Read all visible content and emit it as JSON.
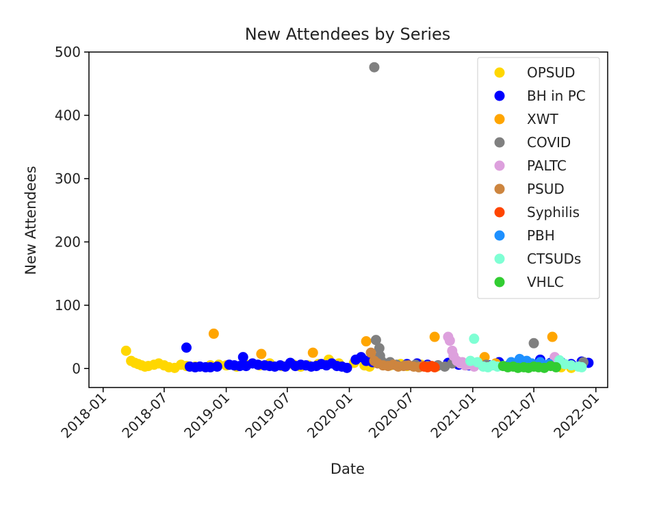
{
  "chart_data": {
    "type": "scatter",
    "title": "New Attendees by Series",
    "xlabel": "Date",
    "ylabel": "New Attendees",
    "x_type": "date",
    "xlim": [
      "2017-11-20",
      "2022-02-05"
    ],
    "ylim": [
      -30,
      500
    ],
    "x_ticks": [
      "2018-01",
      "2018-07",
      "2019-01",
      "2019-07",
      "2020-01",
      "2020-07",
      "2021-01",
      "2021-07",
      "2022-01"
    ],
    "y_ticks": [
      0,
      100,
      200,
      300,
      400,
      500
    ],
    "grid": false,
    "legend_position": "top-right",
    "series": [
      {
        "name": "OPSUD",
        "color": "#FFD700",
        "points": [
          [
            "2018-03-10",
            28
          ],
          [
            "2018-03-25",
            12
          ],
          [
            "2018-04-05",
            9
          ],
          [
            "2018-04-15",
            7
          ],
          [
            "2018-04-25",
            5
          ],
          [
            "2018-05-05",
            3
          ],
          [
            "2018-05-15",
            4
          ],
          [
            "2018-06-01",
            6
          ],
          [
            "2018-06-15",
            8
          ],
          [
            "2018-07-01",
            5
          ],
          [
            "2018-07-15",
            2
          ],
          [
            "2018-08-01",
            1
          ],
          [
            "2018-08-20",
            6
          ],
          [
            "2018-09-05",
            4
          ],
          [
            "2018-10-01",
            3
          ],
          [
            "2018-11-15",
            5
          ],
          [
            "2018-12-10",
            6
          ],
          [
            "2019-01-01",
            5
          ],
          [
            "2019-02-01",
            3
          ],
          [
            "2019-03-01",
            6
          ],
          [
            "2019-04-10",
            5
          ],
          [
            "2019-05-10",
            8
          ],
          [
            "2019-06-15",
            4
          ],
          [
            "2019-07-20",
            6
          ],
          [
            "2019-08-10",
            3
          ],
          [
            "2019-09-01",
            5
          ],
          [
            "2019-10-01",
            7
          ],
          [
            "2019-11-01",
            14
          ],
          [
            "2019-12-01",
            8
          ],
          [
            "2020-01-15",
            9
          ],
          [
            "2020-02-15",
            5
          ],
          [
            "2020-03-01",
            3
          ],
          [
            "2020-04-10",
            6
          ],
          [
            "2020-05-01",
            5
          ],
          [
            "2020-06-01",
            7
          ],
          [
            "2020-06-20",
            4
          ],
          [
            "2020-08-01",
            6
          ],
          [
            "2020-09-15",
            3
          ],
          [
            "2021-05-15",
            2
          ],
          [
            "2021-07-10",
            4
          ],
          [
            "2021-09-20",
            2
          ],
          [
            "2021-10-20",
            1
          ]
        ]
      },
      {
        "name": "BH in PC",
        "color": "#0000FF",
        "points": [
          [
            "2018-09-05",
            33
          ],
          [
            "2018-09-15",
            3
          ],
          [
            "2018-10-01",
            2
          ],
          [
            "2018-10-15",
            3
          ],
          [
            "2018-11-01",
            2
          ],
          [
            "2018-11-15",
            2
          ],
          [
            "2018-12-05",
            3
          ],
          [
            "2019-01-10",
            6
          ],
          [
            "2019-01-25",
            5
          ],
          [
            "2019-02-10",
            4
          ],
          [
            "2019-02-20",
            18
          ],
          [
            "2019-03-01",
            4
          ],
          [
            "2019-03-20",
            8
          ],
          [
            "2019-04-05",
            6
          ],
          [
            "2019-04-25",
            5
          ],
          [
            "2019-05-10",
            4
          ],
          [
            "2019-05-25",
            3
          ],
          [
            "2019-06-10",
            5
          ],
          [
            "2019-06-25",
            3
          ],
          [
            "2019-07-10",
            9
          ],
          [
            "2019-07-25",
            4
          ],
          [
            "2019-08-10",
            6
          ],
          [
            "2019-08-25",
            5
          ],
          [
            "2019-09-10",
            3
          ],
          [
            "2019-09-25",
            4
          ],
          [
            "2019-10-10",
            7
          ],
          [
            "2019-10-25",
            5
          ],
          [
            "2019-11-10",
            8
          ],
          [
            "2019-11-25",
            4
          ],
          [
            "2019-12-10",
            3
          ],
          [
            "2019-12-25",
            1
          ],
          [
            "2020-01-20",
            14
          ],
          [
            "2020-02-05",
            18
          ],
          [
            "2020-02-20",
            12
          ],
          [
            "2020-03-10",
            10
          ],
          [
            "2020-04-15",
            6
          ],
          [
            "2020-05-20",
            5
          ],
          [
            "2020-06-20",
            7
          ],
          [
            "2020-07-20",
            8
          ],
          [
            "2020-08-20",
            6
          ],
          [
            "2020-09-20",
            5
          ],
          [
            "2020-10-20",
            9
          ],
          [
            "2020-11-20",
            6
          ],
          [
            "2020-12-20",
            5
          ],
          [
            "2021-01-20",
            8
          ],
          [
            "2021-02-20",
            5
          ],
          [
            "2021-03-20",
            10
          ],
          [
            "2021-04-20",
            6
          ],
          [
            "2021-05-20",
            12
          ],
          [
            "2021-06-20",
            8
          ],
          [
            "2021-07-20",
            14
          ],
          [
            "2021-08-20",
            9
          ],
          [
            "2021-09-20",
            10
          ],
          [
            "2021-10-20",
            7
          ],
          [
            "2021-11-20",
            11
          ],
          [
            "2021-12-10",
            9
          ]
        ]
      },
      {
        "name": "XWT",
        "color": "#FFA500",
        "points": [
          [
            "2018-11-25",
            55
          ],
          [
            "2019-04-15",
            23
          ],
          [
            "2019-09-15",
            25
          ],
          [
            "2020-02-20",
            43
          ],
          [
            "2020-09-10",
            50
          ],
          [
            "2021-02-05",
            18
          ],
          [
            "2021-08-25",
            50
          ],
          [
            "2021-03-10",
            8
          ],
          [
            "2021-06-15",
            6
          ]
        ]
      },
      {
        "name": "COVID",
        "color": "#808080",
        "points": [
          [
            "2020-03-15",
            476
          ],
          [
            "2020-03-20",
            45
          ],
          [
            "2020-03-30",
            32
          ],
          [
            "2020-04-01",
            20
          ],
          [
            "2020-04-05",
            12
          ],
          [
            "2020-04-15",
            8
          ],
          [
            "2020-05-01",
            10
          ],
          [
            "2020-05-20",
            6
          ],
          [
            "2020-06-15",
            5
          ],
          [
            "2020-07-15",
            6
          ],
          [
            "2020-08-20",
            4
          ],
          [
            "2020-09-20",
            5
          ],
          [
            "2020-10-10",
            3
          ],
          [
            "2020-11-01",
            8
          ],
          [
            "2020-12-10",
            5
          ],
          [
            "2021-02-10",
            6
          ],
          [
            "2021-07-01",
            40
          ],
          [
            "2021-11-25",
            10
          ]
        ]
      },
      {
        "name": "PALTC",
        "color": "#DDA0DD",
        "points": [
          [
            "2020-10-20",
            50
          ],
          [
            "2020-10-25",
            44
          ],
          [
            "2020-11-01",
            28
          ],
          [
            "2020-11-05",
            20
          ],
          [
            "2020-11-15",
            12
          ],
          [
            "2020-11-25",
            8
          ],
          [
            "2020-12-01",
            10
          ],
          [
            "2020-12-10",
            5
          ],
          [
            "2020-12-20",
            6
          ],
          [
            "2021-01-05",
            3
          ],
          [
            "2021-09-01",
            18
          ]
        ]
      },
      {
        "name": "PSUD",
        "color": "#CD853F",
        "points": [
          [
            "2020-03-05",
            25
          ],
          [
            "2020-03-15",
            12
          ],
          [
            "2020-03-25",
            8
          ],
          [
            "2020-04-10",
            5
          ],
          [
            "2020-04-25",
            4
          ],
          [
            "2020-05-10",
            6
          ],
          [
            "2020-05-25",
            3
          ],
          [
            "2020-06-10",
            4
          ],
          [
            "2020-06-25",
            5
          ],
          [
            "2020-07-10",
            3
          ],
          [
            "2020-07-25",
            2
          ],
          [
            "2020-08-05",
            4
          ]
        ]
      },
      {
        "name": "Syphilis",
        "color": "#FF4500",
        "points": [
          [
            "2020-08-10",
            3
          ],
          [
            "2020-08-20",
            2
          ],
          [
            "2020-09-01",
            4
          ],
          [
            "2020-09-10",
            2
          ]
        ]
      },
      {
        "name": "PBH",
        "color": "#1E90FF",
        "points": [
          [
            "2021-04-25",
            10
          ],
          [
            "2021-05-20",
            15
          ],
          [
            "2021-06-10",
            12
          ],
          [
            "2021-06-25",
            8
          ],
          [
            "2021-07-20",
            10
          ],
          [
            "2021-08-15",
            7
          ]
        ]
      },
      {
        "name": "CTSUDs",
        "color": "#7FFFD4",
        "points": [
          [
            "2021-01-05",
            47
          ],
          [
            "2020-12-25",
            12
          ],
          [
            "2021-01-15",
            10
          ],
          [
            "2021-02-01",
            3
          ],
          [
            "2021-02-15",
            2
          ],
          [
            "2021-03-01",
            5
          ],
          [
            "2021-03-15",
            3
          ],
          [
            "2021-04-01",
            4
          ],
          [
            "2021-09-15",
            13
          ],
          [
            "2021-10-01",
            7
          ],
          [
            "2021-10-20",
            5
          ],
          [
            "2021-11-10",
            3
          ],
          [
            "2021-11-20",
            2
          ]
        ]
      },
      {
        "name": "VHLC",
        "color": "#32CD32",
        "points": [
          [
            "2021-04-01",
            4
          ],
          [
            "2021-04-15",
            2
          ],
          [
            "2021-05-01",
            3
          ],
          [
            "2021-05-15",
            1
          ],
          [
            "2021-06-01",
            2
          ],
          [
            "2021-06-15",
            1
          ],
          [
            "2021-07-01",
            3
          ],
          [
            "2021-07-15",
            2
          ],
          [
            "2021-08-01",
            1
          ],
          [
            "2021-08-20",
            4
          ],
          [
            "2021-09-05",
            2
          ]
        ]
      }
    ]
  }
}
